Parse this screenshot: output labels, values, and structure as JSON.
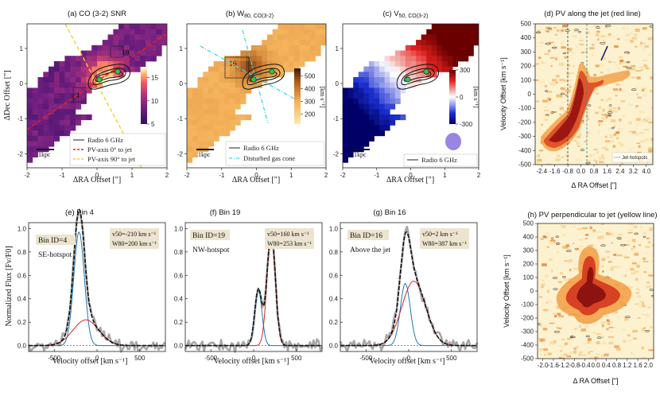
{
  "chart_data": [
    {
      "id": "a",
      "type": "heatmap",
      "title": "(a) CO (3-2) SNR",
      "xlabel": "ΔRA Offset [\"]",
      "ylabel": "ΔDec Offset [\"]",
      "xlim": [
        -2,
        2
      ],
      "ylim": [
        -2.4,
        1.7
      ],
      "xticks": [
        "-2",
        "-1",
        "0",
        "1",
        "2"
      ],
      "yticks": [
        "-2",
        "-1",
        "0",
        "1"
      ],
      "colorbar": {
        "min": 5,
        "max": 17,
        "ticks": [
          "5",
          "10",
          "15"
        ]
      },
      "bin_labels": [
        "19",
        "4"
      ],
      "scale_label": "1kpc",
      "legend": [
        "Radio 6 GHz",
        "PV-axis 0° to jet",
        "PV-axis 90° to jet"
      ]
    },
    {
      "id": "b",
      "type": "heatmap",
      "title": "(b) W80, CO(3-2)",
      "title_main": "(b) W",
      "title_sub": "80, CO(3-2)",
      "xlabel": "ΔRA Offset [\"]",
      "xlim": [
        -2,
        2
      ],
      "ylim": [
        -2.4,
        1.7
      ],
      "xticks": [
        "-2",
        "-1",
        "0",
        "1",
        "2"
      ],
      "yticks": [
        "-2",
        "-1",
        "0",
        "1"
      ],
      "colorbar": {
        "min": 120,
        "max": 560,
        "ticks": [
          "200",
          "300",
          "400",
          "500"
        ],
        "unit": "[km s⁻¹]"
      },
      "bin_labels": [
        "16"
      ],
      "scale_label": "1kpc",
      "legend": [
        "Radio 6 GHz",
        "Disturbed gas cone"
      ]
    },
    {
      "id": "c",
      "type": "heatmap",
      "title": "(c) V50, CO(3-2)",
      "title_main": "(c) V",
      "title_sub": "50, CO(3-2)",
      "xlabel": "ΔRA Offset [\"]",
      "xlim": [
        -2,
        2
      ],
      "ylim": [
        -2.4,
        1.7
      ],
      "xticks": [
        "-2",
        "-1",
        "0",
        "1",
        "2"
      ],
      "yticks": [
        "-2",
        "-1",
        "0",
        "1"
      ],
      "colorbar": {
        "min": -300,
        "max": 300,
        "ticks": [
          "300",
          "0",
          "-300"
        ],
        "unit": "[km s⁻¹]"
      },
      "scale_label": "1kpc",
      "legend": [
        "Radio 6 GHz"
      ]
    },
    {
      "id": "d",
      "type": "heatmap",
      "title": "(d) PV along the jet (red line)",
      "xlabel": "Δ RA Offset [\"]",
      "ylabel": "Velocity Offset [km s⁻¹]",
      "xticks": [
        "-2.4",
        "-1.6",
        "-0.8",
        "0.0",
        "0.8",
        "1.6",
        "2.4",
        "3.2",
        "4.0"
      ],
      "yticks": [
        "500",
        "400",
        "300",
        "200",
        "100",
        "0",
        "-100",
        "-200",
        "-300",
        "-400",
        "-500"
      ],
      "legend": [
        "Jet hotspots"
      ]
    },
    {
      "id": "e",
      "type": "line",
      "title": "(e) Bin 4",
      "xlabel": "Velocity offset [km s⁻¹]",
      "ylabel": "Normalized Flux [Fv/F0]",
      "xlim": [
        -800,
        800
      ],
      "ylim": [
        -0.05,
        1.05
      ],
      "xticks": [
        -500,
        0,
        500
      ],
      "yticks": [
        "0.0",
        "0.2",
        "0.4",
        "0.6",
        "0.8",
        "1.0"
      ],
      "bin_text": "Bin ID=4",
      "region_text": "SE-hotspot",
      "v50_text": "v50=-210 km s⁻¹",
      "w80_text": "W80=200 km s⁻¹",
      "components": [
        {
          "name": "narrow",
          "center": -210,
          "amp": 0.97,
          "sigma": 62
        },
        {
          "name": "broad",
          "center": -130,
          "amp": 0.22,
          "sigma": 150
        }
      ]
    },
    {
      "id": "f",
      "type": "line",
      "title": "(f) Bin 19",
      "xlabel": "Velocity offset [km s⁻¹]",
      "xlim": [
        -800,
        800
      ],
      "ylim": [
        -0.05,
        1.05
      ],
      "xticks": [
        -500,
        0,
        500
      ],
      "bin_text": "Bin ID=19",
      "region_text": "NW-hotspot",
      "v50_text": "v50=160 km s⁻¹",
      "w80_text": "W80=253 km s⁻¹",
      "components": [
        {
          "name": "c1",
          "center": 55,
          "amp": 0.48,
          "sigma": 42
        },
        {
          "name": "c2",
          "center": 205,
          "amp": 0.98,
          "sigma": 48
        }
      ]
    },
    {
      "id": "g",
      "type": "line",
      "title": "(g) Bin 16",
      "xlabel": "Velocity offset [km s⁻¹]",
      "xlim": [
        -800,
        800
      ],
      "ylim": [
        -0.05,
        1.05
      ],
      "xticks": [
        -500,
        0,
        500
      ],
      "bin_text": "Bin ID=16",
      "region_text": "Above the jet",
      "v50_text": "v50=2 km s⁻¹",
      "w80_text": "W80=387 km s⁻¹",
      "components": [
        {
          "name": "narrow",
          "center": -40,
          "amp": 0.53,
          "sigma": 58
        },
        {
          "name": "broad",
          "center": 60,
          "amp": 0.55,
          "sigma": 140
        }
      ]
    },
    {
      "id": "h",
      "type": "heatmap",
      "title": "(h) PV perpendicular to jet (yellow line)",
      "xlabel": "Δ RA Offset [\"]",
      "ylabel": "Velocity Offset [km s⁻¹]",
      "xticks": [
        "-2.0",
        "-1.6",
        "-1.2",
        "-0.8",
        "-0.4",
        "0.0",
        "0.4",
        "0.8",
        "1.2",
        "1.6",
        "2.0"
      ],
      "yticks": [
        "500",
        "400",
        "300",
        "200",
        "100",
        "0",
        "-100",
        "-200",
        "-300",
        "-400",
        "-500"
      ]
    }
  ],
  "colors": {
    "magma_low": "#3b0f70",
    "magma_mid": "#de4968",
    "magma_high": "#fcfdbf",
    "ylorbr": "#f5b766",
    "red": "#c7171c",
    "blue": "#2a3ea8",
    "fit_blue": "#1f77b4",
    "fit_red": "#d62728",
    "data_grey": "#a7a7a7",
    "radio_contour": "#111111",
    "hotspot_green": "#38c24a"
  }
}
